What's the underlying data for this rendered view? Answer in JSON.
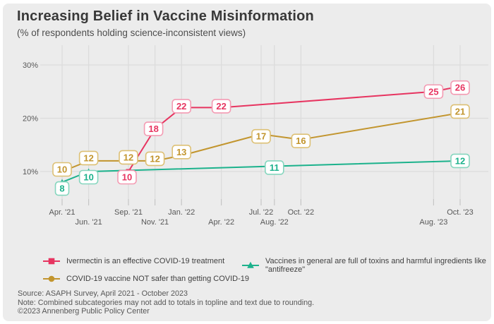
{
  "header": {
    "title": "Increasing Belief in Vaccine Misinformation",
    "subtitle": "(% of respondents holding science-inconsistent views)"
  },
  "chart_data": {
    "type": "line",
    "title": "Increasing Belief in Vaccine Misinformation",
    "subtitle": "(% of respondents holding science-inconsistent views)",
    "unit": "percent of respondents",
    "categories": [
      "Apr. '21",
      "Jun. '21",
      "Sep. '21",
      "Nov. '21",
      "Jan. '22",
      "Apr. '22",
      "Jul. '22",
      "Aug. '22",
      "Oct. '22",
      "Aug. '23",
      "Oct. '23"
    ],
    "month_offsets": [
      0,
      2,
      5,
      7,
      9,
      12,
      15,
      16,
      18,
      28,
      30
    ],
    "y_ticks": [
      10,
      20,
      30
    ],
    "y_tick_labels": [
      "10%",
      "20%",
      "30%"
    ],
    "ylim": [
      4,
      33
    ],
    "grid": true,
    "legend_position": "bottom",
    "series": [
      {
        "name": "COVID-19 vaccine NOT safer than getting COVID-19",
        "marker": "circle",
        "color": "#c2952e",
        "label_border": "#ddc074",
        "points": [
          {
            "category": "Apr. '21",
            "i": 0,
            "v": 10,
            "dy": -3
          },
          {
            "category": "Jun. '21",
            "i": 1,
            "v": 12,
            "dy": -4
          },
          {
            "category": "Sep. '21",
            "i": 2,
            "v": 12,
            "dy": -5
          },
          {
            "category": "Nov. '21",
            "i": 3,
            "v": 12,
            "dy": -3
          },
          {
            "category": "Jan. '22",
            "i": 4,
            "v": 13,
            "dy": -5
          },
          {
            "category": "Jul. '22",
            "i": 6,
            "v": 17,
            "dy": 3
          },
          {
            "category": "Oct. '22",
            "i": 8,
            "v": 16,
            "dy": 2
          },
          {
            "category": "Oct. '23",
            "i": 10,
            "v": 21,
            "dy": -2
          }
        ]
      },
      {
        "name": "Vaccines in general are full of toxins and harmful ingredients like \"antifreeze\"",
        "marker": "triangle",
        "color": "#1cb28c",
        "label_border": "#85d6be",
        "points": [
          {
            "category": "Apr. '21",
            "i": 0,
            "v": 8,
            "dy": 9
          },
          {
            "category": "Jun. '21",
            "i": 1,
            "v": 10,
            "dy": 8
          },
          {
            "category": "Aug. '22",
            "i": 7,
            "v": 11,
            "dy": 2
          },
          {
            "category": "Oct. '23",
            "i": 10,
            "v": 12,
            "dy": 0
          }
        ]
      },
      {
        "name": "Ivermectin is an effective COVID-19 treatment",
        "marker": "square",
        "color": "#e73460",
        "label_border": "#f49ab2",
        "points": [
          {
            "category": "Sep. '21",
            "i": 2,
            "v": 10,
            "dy": 8,
            "dx": -2
          },
          {
            "category": "Nov. '21",
            "i": 3,
            "v": 18,
            "dy": 0,
            "dx": -2
          },
          {
            "category": "Jan. '22",
            "i": 4,
            "v": 22,
            "dy": -2
          },
          {
            "category": "Apr. '22",
            "i": 5,
            "v": 22,
            "dy": -2
          },
          {
            "category": "Aug. '23",
            "i": 9,
            "v": 25,
            "dy": 0
          },
          {
            "category": "Oct. '23",
            "i": 10,
            "v": 26,
            "dy": 2
          }
        ]
      }
    ]
  },
  "legend": {
    "items": [
      {
        "label": "Ivermectin is an effective COVID-19 treatment",
        "marker": "square",
        "color": "#e73460",
        "series_index": 2
      },
      {
        "label": "Vaccines in general are full of toxins and harmful ingredients like \"antifreeze\"",
        "marker": "triangle",
        "color": "#1cb28c",
        "series_index": 1
      },
      {
        "label": "COVID-19 vaccine NOT safer than getting COVID-19",
        "marker": "circle",
        "color": "#c2952e",
        "series_index": 0
      }
    ]
  },
  "footer": {
    "source": "Source: ASAPH Survey, April 2021 - October 2023",
    "note": "Note: Combined subcategories may not add to totals in topline and text due to rounding.",
    "copyright": "©2023 Annenberg Public Policy Center"
  },
  "colors": {
    "canvas_bg": "#ececec",
    "grid": "#dcdcdc",
    "tick": "#c6c6c6",
    "axis_text": "#575757",
    "title_text": "#383838",
    "label_bg": "#ffffff"
  }
}
